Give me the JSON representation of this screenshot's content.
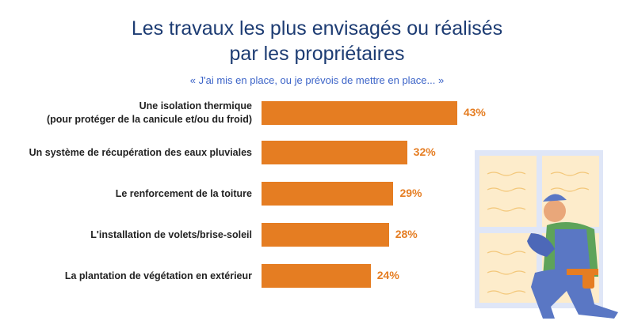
{
  "chart_data": {
    "type": "bar",
    "orientation": "horizontal",
    "title": "Les travaux les plus envisagés ou réalisés par les propriétaires",
    "title_lines": [
      "Les travaux les plus envisagés ou réalisés",
      "par les propriétaires"
    ],
    "subtitle": "« J'ai mis en place, ou je prévois de mettre en place... »",
    "categories": [
      [
        "Une isolation thermique",
        "(pour protéger de la canicule et/ou du froid)"
      ],
      [
        "Un système de récupération des eaux pluviales"
      ],
      [
        "Le renforcement de la toiture"
      ],
      [
        "L'installation de volets/brise-soleil"
      ],
      [
        "La plantation de végétation en extérieur"
      ]
    ],
    "values": [
      43,
      32,
      29,
      28,
      24
    ],
    "value_labels": [
      "43%",
      "32%",
      "29%",
      "28%",
      "24%"
    ],
    "unit": "%",
    "bar_color": "#e57d22"
  }
}
